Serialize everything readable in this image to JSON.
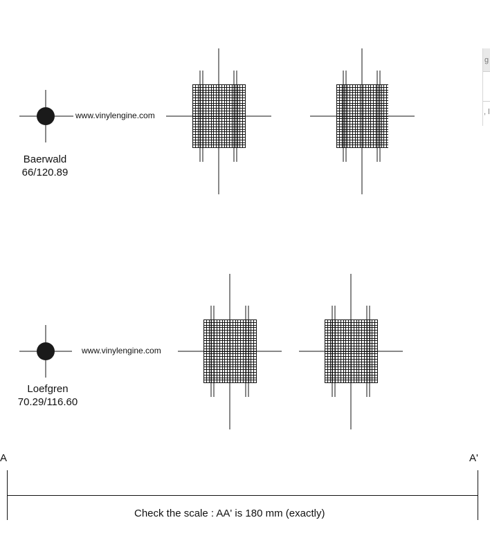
{
  "protractors": [
    {
      "name": "Baerwald",
      "geometry": "66/120.89",
      "url": "www.vinylengine.com"
    },
    {
      "name": "Loefgren",
      "geometry": "70.29/116.60",
      "url": "www.vinylengine.com"
    }
  ],
  "scale": {
    "start_label": "A",
    "end_label": "A'",
    "caption": "Check the scale : AA' is 180 mm (exactly)"
  },
  "side_widget": {
    "top_text": "g",
    "bottom_text": ", l"
  }
}
